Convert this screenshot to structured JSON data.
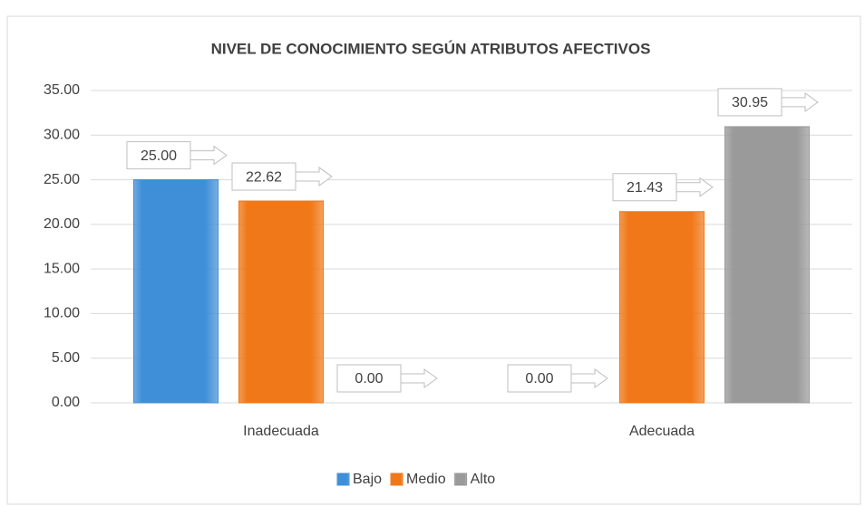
{
  "chart_data": {
    "type": "bar",
    "title": "NIVEL DE CONOCIMIENTO SEGÚN ATRIBUTOS AFECTIVOS",
    "categories": [
      "Inadecuada",
      "Adecuada"
    ],
    "series": [
      {
        "name": "Bajo",
        "color": "#3f8fd8",
        "values": [
          25,
          0
        ],
        "value_labels": [
          "25.00",
          "0.00"
        ]
      },
      {
        "name": "Medio",
        "color": "#f07818",
        "values": [
          22.62,
          21.43
        ],
        "value_labels": [
          "22.62",
          "21.43"
        ]
      },
      {
        "name": "Alto",
        "color": "#9a9a9a",
        "values": [
          0,
          30.95
        ],
        "value_labels": [
          "0.00",
          "30.95"
        ]
      }
    ],
    "ylim": [
      0,
      35
    ],
    "yticks": [
      {
        "value": 0,
        "label": "0.00"
      },
      {
        "value": 5,
        "label": "5.00"
      },
      {
        "value": 10,
        "label": "10.00"
      },
      {
        "value": 15,
        "label": "15.00"
      },
      {
        "value": 20,
        "label": "20.00"
      },
      {
        "value": 25,
        "label": "25.00"
      },
      {
        "value": 30,
        "label": "30.00"
      },
      {
        "value": 35,
        "label": "35.00"
      }
    ],
    "grid": true,
    "legend": "bottom"
  }
}
